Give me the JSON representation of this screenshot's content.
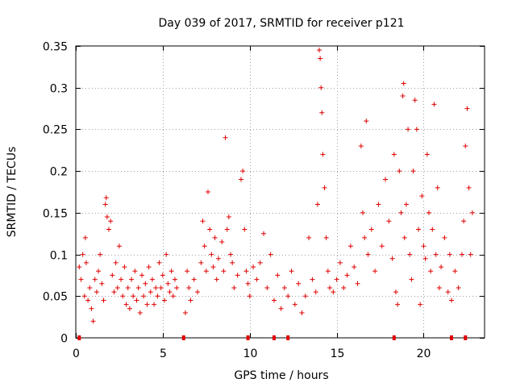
{
  "chart_data": {
    "type": "scatter",
    "title": "Day 039 of 2017, SRMTID for receiver p121",
    "xlabel": "GPS time / hours",
    "ylabel": "SRMTID / TECUs",
    "xlim": [
      0,
      23.5
    ],
    "ylim": [
      0,
      0.35
    ],
    "xticks": [
      0,
      5,
      10,
      15,
      20
    ],
    "xtick_labels": [
      "0",
      "5",
      "10",
      "15",
      "20"
    ],
    "yticks": [
      0,
      0.05,
      0.1,
      0.15,
      0.2,
      0.25,
      0.3,
      0.35
    ],
    "ytick_labels": [
      "0",
      "0.05",
      "0.1",
      "0.15",
      "0.2",
      "0.25",
      "0.3",
      "0.35"
    ],
    "grid": true,
    "marker": "+",
    "color": "#e00000",
    "series": [
      {
        "name": "SRMTID p121",
        "points": [
          [
            0.2,
            0.085
          ],
          [
            0.3,
            0.07
          ],
          [
            0.4,
            0.1
          ],
          [
            0.5,
            0.05
          ],
          [
            0.55,
            0.12
          ],
          [
            0.6,
            0.09
          ],
          [
            0.7,
            0.045
          ],
          [
            0.8,
            0.06
          ],
          [
            0.9,
            0.035
          ],
          [
            1.0,
            0.02
          ],
          [
            1.1,
            0.07
          ],
          [
            1.2,
            0.055
          ],
          [
            1.3,
            0.08
          ],
          [
            1.4,
            0.1
          ],
          [
            1.5,
            0.065
          ],
          [
            1.6,
            0.045
          ],
          [
            1.7,
            0.16
          ],
          [
            1.75,
            0.168
          ],
          [
            1.8,
            0.145
          ],
          [
            1.9,
            0.13
          ],
          [
            2.0,
            0.14
          ],
          [
            2.1,
            0.075
          ],
          [
            2.2,
            0.055
          ],
          [
            2.3,
            0.09
          ],
          [
            2.4,
            0.06
          ],
          [
            2.5,
            0.11
          ],
          [
            2.6,
            0.07
          ],
          [
            2.7,
            0.05
          ],
          [
            2.8,
            0.085
          ],
          [
            2.9,
            0.04
          ],
          [
            3.0,
            0.06
          ],
          [
            3.1,
            0.035
          ],
          [
            3.2,
            0.07
          ],
          [
            3.3,
            0.05
          ],
          [
            3.4,
            0.08
          ],
          [
            3.5,
            0.045
          ],
          [
            3.6,
            0.06
          ],
          [
            3.7,
            0.03
          ],
          [
            3.8,
            0.075
          ],
          [
            3.9,
            0.05
          ],
          [
            4.0,
            0.065
          ],
          [
            4.1,
            0.04
          ],
          [
            4.2,
            0.085
          ],
          [
            4.3,
            0.055
          ],
          [
            4.4,
            0.07
          ],
          [
            4.5,
            0.04
          ],
          [
            4.6,
            0.06
          ],
          [
            4.7,
            0.05
          ],
          [
            4.8,
            0.09
          ],
          [
            4.9,
            0.06
          ],
          [
            5.0,
            0.075
          ],
          [
            5.1,
            0.045
          ],
          [
            5.2,
            0.1
          ],
          [
            5.3,
            0.065
          ],
          [
            5.4,
            0.055
          ],
          [
            5.5,
            0.08
          ],
          [
            5.6,
            0.05
          ],
          [
            5.7,
            0.07
          ],
          [
            5.8,
            0.06
          ],
          [
            6.3,
            0.03
          ],
          [
            6.4,
            0.08
          ],
          [
            6.5,
            0.06
          ],
          [
            6.6,
            0.045
          ],
          [
            6.8,
            0.07
          ],
          [
            7.0,
            0.055
          ],
          [
            7.2,
            0.09
          ],
          [
            7.3,
            0.14
          ],
          [
            7.4,
            0.11
          ],
          [
            7.5,
            0.08
          ],
          [
            7.6,
            0.175
          ],
          [
            7.7,
            0.13
          ],
          [
            7.8,
            0.1
          ],
          [
            7.9,
            0.085
          ],
          [
            8.0,
            0.12
          ],
          [
            8.1,
            0.07
          ],
          [
            8.2,
            0.095
          ],
          [
            8.4,
            0.115
          ],
          [
            8.5,
            0.08
          ],
          [
            8.6,
            0.24
          ],
          [
            8.7,
            0.13
          ],
          [
            8.8,
            0.145
          ],
          [
            8.9,
            0.1
          ],
          [
            9.0,
            0.09
          ],
          [
            9.1,
            0.06
          ],
          [
            9.3,
            0.075
          ],
          [
            9.5,
            0.19
          ],
          [
            9.6,
            0.2
          ],
          [
            9.7,
            0.13
          ],
          [
            9.8,
            0.08
          ],
          [
            9.9,
            0.065
          ],
          [
            10.0,
            0.05
          ],
          [
            10.2,
            0.085
          ],
          [
            10.4,
            0.07
          ],
          [
            10.6,
            0.09
          ],
          [
            10.8,
            0.125
          ],
          [
            11.0,
            0.06
          ],
          [
            11.2,
            0.1
          ],
          [
            11.4,
            0.045
          ],
          [
            11.6,
            0.075
          ],
          [
            11.8,
            0.035
          ],
          [
            12.0,
            0.06
          ],
          [
            12.2,
            0.05
          ],
          [
            12.4,
            0.08
          ],
          [
            12.6,
            0.04
          ],
          [
            12.8,
            0.065
          ],
          [
            13.0,
            0.03
          ],
          [
            13.2,
            0.05
          ],
          [
            13.4,
            0.12
          ],
          [
            13.6,
            0.07
          ],
          [
            13.8,
            0.055
          ],
          [
            13.9,
            0.16
          ],
          [
            14.0,
            0.345
          ],
          [
            14.05,
            0.335
          ],
          [
            14.1,
            0.3
          ],
          [
            14.15,
            0.27
          ],
          [
            14.2,
            0.22
          ],
          [
            14.3,
            0.18
          ],
          [
            14.4,
            0.12
          ],
          [
            14.5,
            0.08
          ],
          [
            14.6,
            0.06
          ],
          [
            14.8,
            0.055
          ],
          [
            15.0,
            0.07
          ],
          [
            15.2,
            0.09
          ],
          [
            15.4,
            0.06
          ],
          [
            15.6,
            0.075
          ],
          [
            15.8,
            0.11
          ],
          [
            16.0,
            0.085
          ],
          [
            16.2,
            0.065
          ],
          [
            16.4,
            0.23
          ],
          [
            16.5,
            0.15
          ],
          [
            16.6,
            0.12
          ],
          [
            16.7,
            0.26
          ],
          [
            16.8,
            0.1
          ],
          [
            17.0,
            0.13
          ],
          [
            17.2,
            0.08
          ],
          [
            17.4,
            0.16
          ],
          [
            17.6,
            0.11
          ],
          [
            17.8,
            0.19
          ],
          [
            18.0,
            0.14
          ],
          [
            18.2,
            0.095
          ],
          [
            18.3,
            0.22
          ],
          [
            18.4,
            0.055
          ],
          [
            18.5,
            0.04
          ],
          [
            18.6,
            0.2
          ],
          [
            18.7,
            0.15
          ],
          [
            18.8,
            0.29
          ],
          [
            18.85,
            0.305
          ],
          [
            18.9,
            0.12
          ],
          [
            19.0,
            0.16
          ],
          [
            19.1,
            0.25
          ],
          [
            19.2,
            0.1
          ],
          [
            19.3,
            0.07
          ],
          [
            19.4,
            0.2
          ],
          [
            19.5,
            0.285
          ],
          [
            19.6,
            0.25
          ],
          [
            19.7,
            0.13
          ],
          [
            19.8,
            0.04
          ],
          [
            19.9,
            0.17
          ],
          [
            20.0,
            0.11
          ],
          [
            20.1,
            0.095
          ],
          [
            20.2,
            0.22
          ],
          [
            20.3,
            0.15
          ],
          [
            20.4,
            0.08
          ],
          [
            20.5,
            0.13
          ],
          [
            20.6,
            0.28
          ],
          [
            20.7,
            0.1
          ],
          [
            20.8,
            0.18
          ],
          [
            20.9,
            0.06
          ],
          [
            21.0,
            0.085
          ],
          [
            21.2,
            0.12
          ],
          [
            21.4,
            0.055
          ],
          [
            21.5,
            0.1
          ],
          [
            21.6,
            0.045
          ],
          [
            21.8,
            0.08
          ],
          [
            22.0,
            0.06
          ],
          [
            22.2,
            0.1
          ],
          [
            22.3,
            0.14
          ],
          [
            22.4,
            0.23
          ],
          [
            22.5,
            0.275
          ],
          [
            22.6,
            0.18
          ],
          [
            22.7,
            0.1
          ],
          [
            22.8,
            0.15
          ]
        ]
      }
    ],
    "axis_markers": [
      0.2,
      6.2,
      9.9,
      11.4,
      12.2,
      18.3,
      21.6,
      22.4
    ]
  }
}
